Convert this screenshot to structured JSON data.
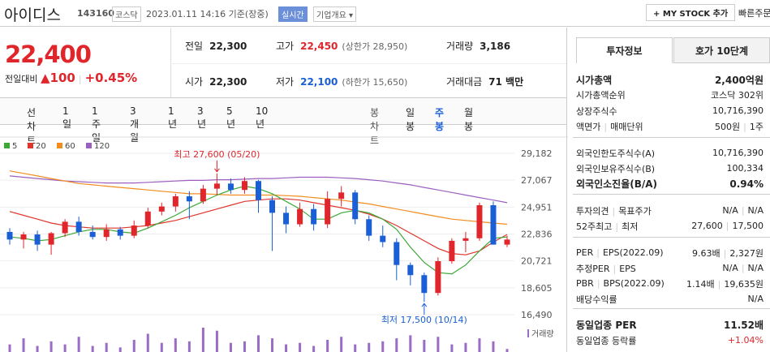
{
  "header": {
    "name": "아이디스",
    "code": "143160",
    "market": "코스닥",
    "timestamp": "2023.01.11 14:16 기준(장중)",
    "realtime": "실시간",
    "company_info": "기업개요",
    "my_stock": "MY STOCK 추가",
    "quick_order": "빠른주문"
  },
  "price": {
    "current": "22,400",
    "change_label": "전일대비",
    "change": "100",
    "change_pct": "+0.45%"
  },
  "quote": [
    [
      {
        "label": "전일",
        "value": "22,300"
      },
      {
        "label": "고가",
        "value": "22,450",
        "note": "(상한가 28,950)",
        "color": "#e0252b"
      },
      {
        "label": "거래량",
        "value": "3,186"
      }
    ],
    [
      {
        "label": "시가",
        "value": "22,300"
      },
      {
        "label": "저가",
        "value": "22,100",
        "note": "(하한가 15,650)",
        "color": "#1a5fd6"
      },
      {
        "label": "거래대금",
        "value": "71 백만"
      }
    ]
  ],
  "periods": {
    "line_label": "선차트",
    "line": [
      "1일",
      "1주일",
      "3개월",
      "1년",
      "3년",
      "5년",
      "10년"
    ],
    "candle_label": "봉차트",
    "candle": [
      "일봉",
      "주봉",
      "월봉"
    ],
    "selected": 1
  },
  "chart": {
    "up_color": "#e0252b",
    "down_color": "#1a5fd6",
    "open": [
      23000,
      22400,
      22800,
      22000,
      22900,
      23800,
      23000,
      22600,
      23200,
      22700,
      23500,
      24600,
      25000,
      25800,
      25400,
      26400,
      26800,
      26300,
      27000,
      25500,
      24500,
      23600,
      24800,
      23600,
      25600,
      26100,
      24000,
      22700,
      22200,
      20400,
      19600,
      18200,
      20700,
      22300,
      22500,
      25100,
      22000
    ],
    "high": [
      23300,
      23000,
      23100,
      23000,
      24000,
      24200,
      23500,
      23600,
      23400,
      23900,
      24900,
      25300,
      26000,
      26200,
      26700,
      27600,
      27200,
      27300,
      27100,
      25800,
      25000,
      25300,
      25200,
      26200,
      26600,
      26300,
      24300,
      23500,
      22500,
      20600,
      19800,
      21000,
      22500,
      23000,
      25300,
      25400,
      22700
    ],
    "low": [
      22000,
      21700,
      21500,
      21200,
      22600,
      22700,
      22400,
      22300,
      22400,
      22500,
      23300,
      24300,
      24600,
      24000,
      25200,
      25900,
      26000,
      26000,
      24500,
      21500,
      22900,
      23400,
      23100,
      23300,
      25000,
      23600,
      22300,
      21800,
      19200,
      18800,
      17500,
      18000,
      20500,
      21400,
      22300,
      22000,
      21800
    ],
    "close": [
      22400,
      22800,
      22000,
      22900,
      23800,
      23000,
      22600,
      23200,
      22700,
      23500,
      24600,
      25000,
      25800,
      25400,
      26400,
      26800,
      26300,
      27000,
      25500,
      24500,
      23600,
      24800,
      23600,
      25600,
      26100,
      24000,
      22700,
      22200,
      20400,
      19600,
      18200,
      20700,
      22300,
      22500,
      25100,
      22000,
      22400
    ],
    "ma": [
      {
        "name": "5",
        "color": "#3aa935",
        "values": [
          22600,
          22500,
          22300,
          22400,
          22700,
          23000,
          23200,
          23200,
          23000,
          22900,
          23300,
          23800,
          24300,
          24900,
          25400,
          25900,
          26300,
          26600,
          26400,
          26000,
          25400,
          24800,
          24000,
          24000,
          24500,
          24700,
          24500,
          24000,
          23200,
          21800,
          20600,
          19800,
          19700,
          20400,
          21500,
          22500,
          22600
        ]
      },
      {
        "name": "20",
        "color": "#e0352b",
        "values": [
          24600,
          24300,
          24000,
          23700,
          23500,
          23400,
          23300,
          23300,
          23300,
          23400,
          23500,
          23700,
          23900,
          24200,
          24500,
          24800,
          25100,
          25400,
          25500,
          25600,
          25600,
          25500,
          25300,
          25100,
          24900,
          24700,
          24400,
          24000,
          23500,
          22900,
          22300,
          21700,
          21300,
          21200,
          21500,
          22200,
          22800
        ]
      },
      {
        "name": "60",
        "color": "#f28c1e",
        "values": [
          27800,
          27600,
          27400,
          27200,
          27000,
          26800,
          26700,
          26600,
          26500,
          26400,
          26300,
          26200,
          26100,
          26000,
          26000,
          25950,
          25900,
          25900,
          25900,
          25900,
          25850,
          25800,
          25700,
          25600,
          25500,
          25350,
          25200,
          25000,
          24800,
          24600,
          24400,
          24200,
          24000,
          23900,
          23800,
          23700,
          23600
        ]
      },
      {
        "name": "120",
        "color": "#9b5fc0",
        "values": [
          27400,
          27300,
          27200,
          27100,
          27000,
          26950,
          26900,
          26850,
          26850,
          26850,
          26900,
          26950,
          27000,
          27050,
          27050,
          27100,
          27100,
          27150,
          27200,
          27200,
          27250,
          27300,
          27300,
          27300,
          27250,
          27200,
          27100,
          27000,
          26850,
          26700,
          26500,
          26300,
          26100,
          25900,
          25700,
          25500,
          25300
        ]
      }
    ],
    "volume": {
      "label": "거래량",
      "color": "#9b6cc4",
      "values": [
        5000,
        9000,
        4000,
        7000,
        5000,
        10000,
        4000,
        6000,
        3000,
        8000,
        12000,
        6000,
        9000,
        7000,
        16000,
        14000,
        6000,
        7000,
        11000,
        9000,
        5000,
        6000,
        4000,
        8000,
        10000,
        5000,
        6000,
        7000,
        9000,
        11000,
        8000,
        10000,
        5000,
        6000,
        9000,
        7000,
        2000
      ]
    },
    "ylim": [
      16490,
      29182
    ],
    "yticks": [
      {
        "value": 16490,
        "label": "16,490"
      },
      {
        "value": 18605,
        "label": "18,605"
      },
      {
        "value": 20721,
        "label": "20,721"
      },
      {
        "value": 22836,
        "label": "22,836"
      },
      {
        "value": 24951,
        "label": "24,951"
      },
      {
        "value": 27067,
        "label": "27,067"
      },
      {
        "value": 29182,
        "label": "29,182"
      }
    ],
    "high_note": "최고 27,600 (05/20)",
    "low_note": "최저 17,500 (10/14)"
  },
  "info": {
    "tabs": [
      "투자정보",
      "호가 10단계"
    ],
    "sections": [
      [
        {
          "labels": [
            "시가총액"
          ],
          "values": [
            "2,400억원"
          ],
          "strong": true
        },
        {
          "labels": [
            "시가총액순위"
          ],
          "values": [
            "코스닥 302위"
          ]
        },
        {
          "labels": [
            "상장주식수"
          ],
          "values": [
            "10,716,390"
          ]
        },
        {
          "labels": [
            "액면가",
            "매매단위"
          ],
          "values": [
            "500원",
            "1주"
          ]
        }
      ],
      [
        {
          "labels": [
            "외국인한도주식수(A)"
          ],
          "values": [
            "10,716,390"
          ]
        },
        {
          "labels": [
            "외국인보유주식수(B)"
          ],
          "values": [
            "100,334"
          ]
        },
        {
          "labels": [
            "외국인소진율(B/A)"
          ],
          "values": [
            "0.94%"
          ],
          "strong": true
        }
      ],
      [
        {
          "labels": [
            "투자의견",
            "목표주가"
          ],
          "values": [
            "N/A",
            "N/A"
          ]
        },
        {
          "labels": [
            "52주최고",
            "최저"
          ],
          "values": [
            "27,600",
            "17,500"
          ]
        }
      ],
      [
        {
          "labels": [
            "PER",
            "EPS(2022.09)"
          ],
          "values": [
            "9.63배",
            "2,327원"
          ]
        },
        {
          "labels": [
            "추정PER",
            "EPS"
          ],
          "values": [
            "N/A",
            "N/A"
          ]
        },
        {
          "labels": [
            "PBR",
            "BPS(2022.09)"
          ],
          "values": [
            "1.14배",
            "19,635원"
          ]
        },
        {
          "labels": [
            "배당수익률"
          ],
          "values": [
            "N/A"
          ]
        }
      ],
      [
        {
          "labels": [
            "동일업종 PER"
          ],
          "values": [
            "11.52배"
          ],
          "strong": true
        },
        {
          "labels": [
            "동일업종 등락률"
          ],
          "values": [
            "+1.04%"
          ],
          "color": "#e0252b"
        }
      ]
    ]
  }
}
